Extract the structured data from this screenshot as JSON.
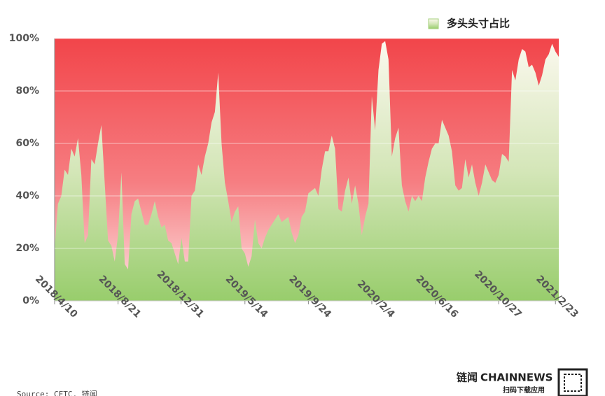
{
  "chart_data": {
    "type": "area",
    "x": [
      "2018/4/10",
      "2018/4/17",
      "2018/4/24",
      "2018/5/1",
      "2018/5/8",
      "2018/5/15",
      "2018/5/22",
      "2018/5/29",
      "2018/6/5",
      "2018/6/12",
      "2018/6/19",
      "2018/6/26",
      "2018/7/3",
      "2018/7/10",
      "2018/7/17",
      "2018/7/24",
      "2018/7/31",
      "2018/8/7",
      "2018/8/14",
      "2018/8/21",
      "2018/8/28",
      "2018/9/4",
      "2018/9/11",
      "2018/9/18",
      "2018/9/25",
      "2018/10/2",
      "2018/10/9",
      "2018/10/16",
      "2018/10/23",
      "2018/10/30",
      "2018/11/6",
      "2018/11/13",
      "2018/11/20",
      "2018/11/27",
      "2018/12/4",
      "2018/12/11",
      "2018/12/18",
      "2018/12/25",
      "2019/1/1",
      "2019/1/8",
      "2019/1/15",
      "2019/1/22",
      "2019/1/29",
      "2019/2/5",
      "2019/2/12",
      "2019/2/19",
      "2019/2/26",
      "2019/3/5",
      "2019/3/12",
      "2019/3/19",
      "2019/3/26",
      "2019/4/2",
      "2019/4/9",
      "2019/4/16",
      "2019/4/23",
      "2019/4/30",
      "2019/5/7",
      "2019/5/14",
      "2019/5/21",
      "2019/5/28",
      "2019/6/4",
      "2019/6/11",
      "2019/6/18",
      "2019/6/25",
      "2019/7/2",
      "2019/7/9",
      "2019/7/16",
      "2019/7/23",
      "2019/7/30",
      "2019/8/6",
      "2019/8/13",
      "2019/8/20",
      "2019/8/27",
      "2019/9/3",
      "2019/9/10",
      "2019/9/17",
      "2019/9/24",
      "2019/10/1",
      "2019/10/8",
      "2019/10/15",
      "2019/10/22",
      "2019/10/29",
      "2019/11/5",
      "2019/11/12",
      "2019/11/19",
      "2019/11/26",
      "2019/12/3",
      "2019/12/10",
      "2019/12/17",
      "2019/12/24",
      "2019/12/31",
      "2020/1/7",
      "2020/1/14",
      "2020/1/21",
      "2020/1/28",
      "2020/2/4",
      "2020/2/11",
      "2020/2/18",
      "2020/2/25",
      "2020/3/3",
      "2020/3/10",
      "2020/3/17",
      "2020/3/24",
      "2020/3/31",
      "2020/4/7",
      "2020/4/14",
      "2020/4/21",
      "2020/4/28",
      "2020/5/5",
      "2020/5/12",
      "2020/5/19",
      "2020/5/26",
      "2020/6/2",
      "2020/6/9",
      "2020/6/16",
      "2020/6/23",
      "2020/6/30",
      "2020/7/7",
      "2020/7/14",
      "2020/7/21",
      "2020/7/28",
      "2020/8/4",
      "2020/8/11",
      "2020/8/18",
      "2020/8/25",
      "2020/9/1",
      "2020/9/8",
      "2020/9/15",
      "2020/9/22",
      "2020/9/29",
      "2020/10/6",
      "2020/10/13",
      "2020/10/20",
      "2020/10/27",
      "2020/11/3",
      "2020/11/10",
      "2020/11/17",
      "2020/11/24",
      "2020/12/1",
      "2020/12/8",
      "2020/12/15",
      "2020/12/22",
      "2020/12/29",
      "2021/1/5",
      "2021/1/12",
      "2021/1/19",
      "2021/1/26",
      "2021/2/2",
      "2021/2/9",
      "2021/2/16",
      "2021/2/23",
      "2021/3/2"
    ],
    "series": [
      {
        "name": "多头头寸占比",
        "color": "#a5d17d",
        "values": [
          20,
          37,
          40,
          50,
          48,
          58,
          55,
          62,
          48,
          22,
          25,
          54,
          52,
          60,
          67,
          45,
          23,
          21,
          15,
          25,
          49,
          14,
          12,
          33,
          38,
          39,
          34,
          29,
          29,
          33,
          38,
          32,
          28,
          29,
          23,
          22,
          18,
          14,
          24,
          15,
          15,
          40,
          42,
          52,
          48,
          55,
          60,
          68,
          72,
          87,
          60,
          45,
          38,
          30,
          34,
          36,
          20,
          18,
          13,
          17,
          31,
          22,
          20,
          24,
          27,
          29,
          31,
          33,
          30,
          31,
          32,
          26,
          22,
          25,
          32,
          34,
          41,
          42,
          43,
          40,
          50,
          57,
          57,
          63,
          58,
          35,
          34,
          42,
          47,
          37,
          44,
          37,
          25,
          32,
          37,
          78,
          65,
          88,
          98,
          99,
          92,
          55,
          62,
          66,
          44,
          38,
          34,
          40,
          38,
          40,
          38,
          47,
          53,
          58,
          60,
          60,
          69,
          66,
          63,
          57,
          44,
          42,
          43,
          54,
          47,
          52,
          45,
          40,
          45,
          52,
          49,
          46,
          45,
          48,
          56,
          55,
          53,
          88,
          84,
          92,
          96,
          95,
          89,
          90,
          87,
          82,
          86,
          92,
          94,
          98,
          95,
          93
        ]
      }
    ],
    "xlim": [
      "2018/4/10",
      "2021/3/2"
    ],
    "xticks": [
      "2018/4/10",
      "2018/8/21",
      "2018/12/31",
      "2019/5/14",
      "2019/9/24",
      "2020/2/4",
      "2020/6/16",
      "2020/10/27",
      "2021/2/23"
    ],
    "ylim": [
      0,
      100
    ],
    "yticks": [
      {
        "value": 0,
        "label": "0%"
      },
      {
        "value": 20,
        "label": "20%"
      },
      {
        "value": 40,
        "label": "40%"
      },
      {
        "value": 60,
        "label": "60%"
      },
      {
        "value": 80,
        "label": "80%"
      },
      {
        "value": 100,
        "label": "100%"
      }
    ],
    "grid": true,
    "legend": "top-right",
    "source": "Source: CFTC, 链闻",
    "brand": {
      "name": "链闻",
      "logo": "CHAINNEWS",
      "slogan": "扫码下载应用"
    }
  }
}
